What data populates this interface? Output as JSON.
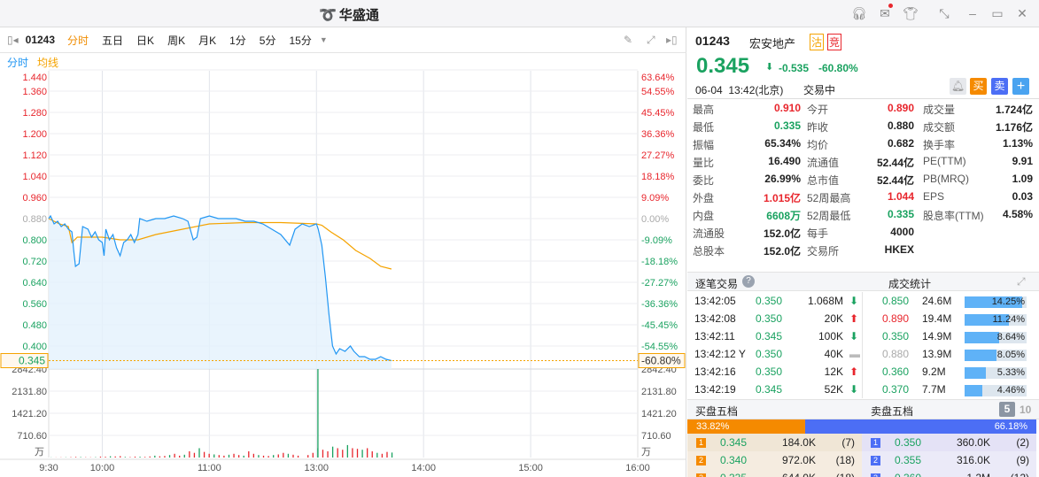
{
  "app": {
    "title": "华盛通",
    "window_icons": [
      "headset-icon",
      "mail-icon",
      "shirt-icon",
      "shrink-icon",
      "minimize-icon",
      "maximize-icon",
      "close-icon"
    ]
  },
  "toolbar": {
    "code": "01243",
    "tabs": [
      "分时",
      "五日",
      "日K",
      "周K",
      "月K",
      "1分",
      "5分",
      "15分"
    ],
    "active": "分时"
  },
  "legend": {
    "price": "分时",
    "avg": "均线",
    "price_color": "#2196f3",
    "avg_color": "#f5a300"
  },
  "chart_data": {
    "type": "line",
    "prev_close": 0.88,
    "current": {
      "price": "0.345",
      "pct": "-60.80%"
    },
    "price_ticks": [
      "1.440",
      "1.360",
      "1.280",
      "1.200",
      "1.120",
      "1.040",
      "0.960",
      "0.880",
      "0.800",
      "0.720",
      "0.640",
      "0.560",
      "0.480",
      "0.400"
    ],
    "pct_ticks": [
      "63.64%",
      "54.55%",
      "45.45%",
      "36.36%",
      "27.27%",
      "18.18%",
      "9.09%",
      "0.00%",
      "-9.09%",
      "-18.18%",
      "-27.27%",
      "-36.36%",
      "-45.45%",
      "-54.55%"
    ],
    "volume_ticks": [
      "2842.40",
      "2131.80",
      "1421.20",
      "710.60"
    ],
    "volume_unit": "万",
    "time_ticks": [
      "9:30",
      "10:00",
      "11:00",
      "13:00",
      "14:00",
      "15:00",
      "16:00"
    ],
    "price_series": [
      [
        "9:30",
        0.88
      ],
      [
        "9:31",
        0.89
      ],
      [
        "9:33",
        0.86
      ],
      [
        "9:35",
        0.87
      ],
      [
        "9:37",
        0.85
      ],
      [
        "9:39",
        0.86
      ],
      [
        "9:41",
        0.84
      ],
      [
        "9:43",
        0.83
      ],
      [
        "9:44",
        0.76
      ],
      [
        "9:45",
        0.7
      ],
      [
        "9:47",
        0.71
      ],
      [
        "9:49",
        0.85
      ],
      [
        "9:52",
        0.84
      ],
      [
        "9:54",
        0.81
      ],
      [
        "9:56",
        0.83
      ],
      [
        "9:58",
        0.8
      ],
      [
        "10:00",
        0.79
      ],
      [
        "10:01",
        0.74
      ],
      [
        "10:02",
        0.84
      ],
      [
        "10:04",
        0.8
      ],
      [
        "10:06",
        0.82
      ],
      [
        "10:08",
        0.77
      ],
      [
        "10:10",
        0.74
      ],
      [
        "10:12",
        0.79
      ],
      [
        "10:14",
        0.8
      ],
      [
        "10:16",
        0.82
      ],
      [
        "10:18",
        0.79
      ],
      [
        "10:20",
        0.82
      ],
      [
        "10:21",
        0.88
      ],
      [
        "10:25",
        0.87
      ],
      [
        "10:30",
        0.88
      ],
      [
        "10:35",
        0.88
      ],
      [
        "10:40",
        0.89
      ],
      [
        "10:45",
        0.88
      ],
      [
        "10:48",
        0.87
      ],
      [
        "10:51",
        0.8
      ],
      [
        "10:53",
        0.81
      ],
      [
        "10:55",
        0.88
      ],
      [
        "11:00",
        0.89
      ],
      [
        "11:05",
        0.88
      ],
      [
        "11:10",
        0.88
      ],
      [
        "11:15",
        0.88
      ],
      [
        "11:20",
        0.87
      ],
      [
        "11:25",
        0.87
      ],
      [
        "11:30",
        0.86
      ],
      [
        "11:35",
        0.84
      ],
      [
        "11:40",
        0.82
      ],
      [
        "11:45",
        0.78
      ],
      [
        "11:48",
        0.84
      ],
      [
        "11:52",
        0.86
      ],
      [
        "11:56",
        0.85
      ],
      [
        "12:00",
        0.86
      ],
      [
        "13:01",
        0.84
      ],
      [
        "13:03",
        0.78
      ],
      [
        "13:05",
        0.66
      ],
      [
        "13:07",
        0.52
      ],
      [
        "13:09",
        0.4
      ],
      [
        "13:11",
        0.37
      ],
      [
        "13:13",
        0.39
      ],
      [
        "13:16",
        0.38
      ],
      [
        "13:19",
        0.4
      ],
      [
        "13:21",
        0.38
      ],
      [
        "13:24",
        0.36
      ],
      [
        "13:27",
        0.36
      ],
      [
        "13:30",
        0.35
      ],
      [
        "13:33",
        0.35
      ],
      [
        "13:36",
        0.36
      ],
      [
        "13:39",
        0.35
      ],
      [
        "13:42",
        0.345
      ]
    ],
    "avg_series": [
      [
        "9:30",
        0.88
      ],
      [
        "9:36",
        0.86
      ],
      [
        "9:41",
        0.85
      ],
      [
        "9:43",
        0.79
      ],
      [
        "9:46",
        0.81
      ],
      [
        "10:00",
        0.81
      ],
      [
        "10:10",
        0.8
      ],
      [
        "10:20",
        0.8
      ],
      [
        "10:30",
        0.82
      ],
      [
        "10:45",
        0.84
      ],
      [
        "11:00",
        0.86
      ],
      [
        "11:20",
        0.865
      ],
      [
        "11:40",
        0.865
      ],
      [
        "12:00",
        0.86
      ],
      [
        "13:03",
        0.855
      ],
      [
        "13:08",
        0.83
      ],
      [
        "13:15",
        0.8
      ],
      [
        "13:22",
        0.76
      ],
      [
        "13:30",
        0.73
      ],
      [
        "13:36",
        0.7
      ],
      [
        "13:42",
        0.69
      ]
    ],
    "volume_series": [
      5,
      4,
      6,
      8,
      12,
      20,
      15,
      10,
      8,
      12,
      30,
      25,
      40,
      35,
      45,
      20,
      15,
      30,
      25,
      20,
      35,
      60,
      40,
      50,
      80,
      120,
      60,
      90,
      200,
      150,
      300,
      180,
      120,
      100,
      80,
      60,
      90,
      120,
      80,
      60,
      200,
      120,
      80,
      60,
      50,
      80,
      100,
      150,
      120,
      90,
      60,
      2842,
      80,
      150,
      300,
      250,
      200,
      350,
      300,
      250,
      400,
      300,
      280,
      250,
      300,
      200,
      150,
      120,
      180,
      160
    ]
  },
  "quote": {
    "code": "01243",
    "name": "宏安地产",
    "badges": [
      "沽",
      "竞"
    ],
    "price": "0.345",
    "change": "-0.535",
    "pct": "-60.80%",
    "datetime": "06-04  13:42(北京)",
    "status": "交易中",
    "buttons": [
      "买",
      "卖",
      "+"
    ]
  },
  "stats": [
    [
      {
        "k": "最高",
        "v": "0.910",
        "c": "red"
      },
      {
        "k": "今开",
        "v": "0.890",
        "c": "red"
      },
      {
        "k": "成交量",
        "v": "1.724亿"
      }
    ],
    [
      {
        "k": "最低",
        "v": "0.335",
        "c": "green"
      },
      {
        "k": "昨收",
        "v": "0.880"
      },
      {
        "k": "成交额",
        "v": "1.176亿"
      }
    ],
    [
      {
        "k": "振幅",
        "v": "65.34%"
      },
      {
        "k": "均价",
        "v": "0.682"
      },
      {
        "k": "换手率",
        "v": "1.13%"
      }
    ],
    [
      {
        "k": "量比",
        "v": "16.490"
      },
      {
        "k": "流通值",
        "v": "52.44亿"
      },
      {
        "k": "PE(TTM)",
        "v": "9.91"
      }
    ],
    [
      {
        "k": "委比",
        "v": "26.99%"
      },
      {
        "k": "总市值",
        "v": "52.44亿"
      },
      {
        "k": "PB(MRQ)",
        "v": "1.09"
      }
    ],
    [
      {
        "k": "外盘",
        "v": "1.015亿",
        "c": "red"
      },
      {
        "k": "52周最高",
        "v": "1.044",
        "c": "red"
      },
      {
        "k": "EPS",
        "v": "0.03"
      }
    ],
    [
      {
        "k": "内盘",
        "v": "6608万",
        "c": "green"
      },
      {
        "k": "52周最低",
        "v": "0.335",
        "c": "green"
      },
      {
        "k": "股息率(TTM)",
        "v": "4.58%"
      }
    ],
    [
      {
        "k": "流通股",
        "v": "152.0亿"
      },
      {
        "k": "每手",
        "v": "4000"
      }
    ],
    [
      {
        "k": "总股本",
        "v": "152.0亿"
      },
      {
        "k": "交易所",
        "v": "HKEX"
      }
    ]
  ],
  "trades": {
    "title": "逐笔交易",
    "stats_title": "成交统计",
    "rows": [
      {
        "time": "13:42:05",
        "price": "0.350",
        "vol": "1.068M",
        "dir": "down"
      },
      {
        "time": "13:42:08",
        "price": "0.350",
        "vol": "20K",
        "dir": "up"
      },
      {
        "time": "13:42:11",
        "price": "0.345",
        "vol": "100K",
        "dir": "down"
      },
      {
        "time": "13:42:12 Y",
        "price": "0.350",
        "vol": "40K",
        "dir": "flat"
      },
      {
        "time": "13:42:16",
        "price": "0.350",
        "vol": "12K",
        "dir": "up"
      },
      {
        "time": "13:42:19",
        "price": "0.345",
        "vol": "52K",
        "dir": "down"
      }
    ],
    "stats": [
      {
        "price": "0.850",
        "vol": "24.6M",
        "pct": "14.25%",
        "c": "green",
        "frac": 0.93
      },
      {
        "price": "0.890",
        "vol": "19.4M",
        "pct": "11.24%",
        "c": "red",
        "frac": 0.72
      },
      {
        "price": "0.350",
        "vol": "14.9M",
        "pct": "8.64%",
        "c": "green",
        "frac": 0.56
      },
      {
        "price": "0.880",
        "vol": "13.9M",
        "pct": "8.05%",
        "c": "gray",
        "frac": 0.52
      },
      {
        "price": "0.360",
        "vol": "9.2M",
        "pct": "5.33%",
        "c": "green",
        "frac": 0.34
      },
      {
        "price": "0.370",
        "vol": "7.7M",
        "pct": "4.46%",
        "c": "green",
        "frac": 0.29
      }
    ]
  },
  "orderbook": {
    "bid_title": "买盘五档",
    "ask_title": "卖盘五档",
    "depth": [
      "5",
      "10"
    ],
    "bid_pct": "33.82%",
    "ask_pct": "66.18%",
    "bid_frac": 0.3382,
    "bids": [
      {
        "n": "1",
        "p": "0.345",
        "v": "184.0K",
        "c": "(7)"
      },
      {
        "n": "2",
        "p": "0.340",
        "v": "972.0K",
        "c": "(18)"
      },
      {
        "n": "3",
        "p": "0.335",
        "v": "644.0K",
        "c": "(18)"
      }
    ],
    "asks": [
      {
        "n": "1",
        "p": "0.350",
        "v": "360.0K",
        "c": "(2)"
      },
      {
        "n": "2",
        "p": "0.355",
        "v": "316.0K",
        "c": "(9)"
      },
      {
        "n": "3",
        "p": "0.360",
        "v": "1.2M",
        "c": "(12)"
      }
    ]
  }
}
